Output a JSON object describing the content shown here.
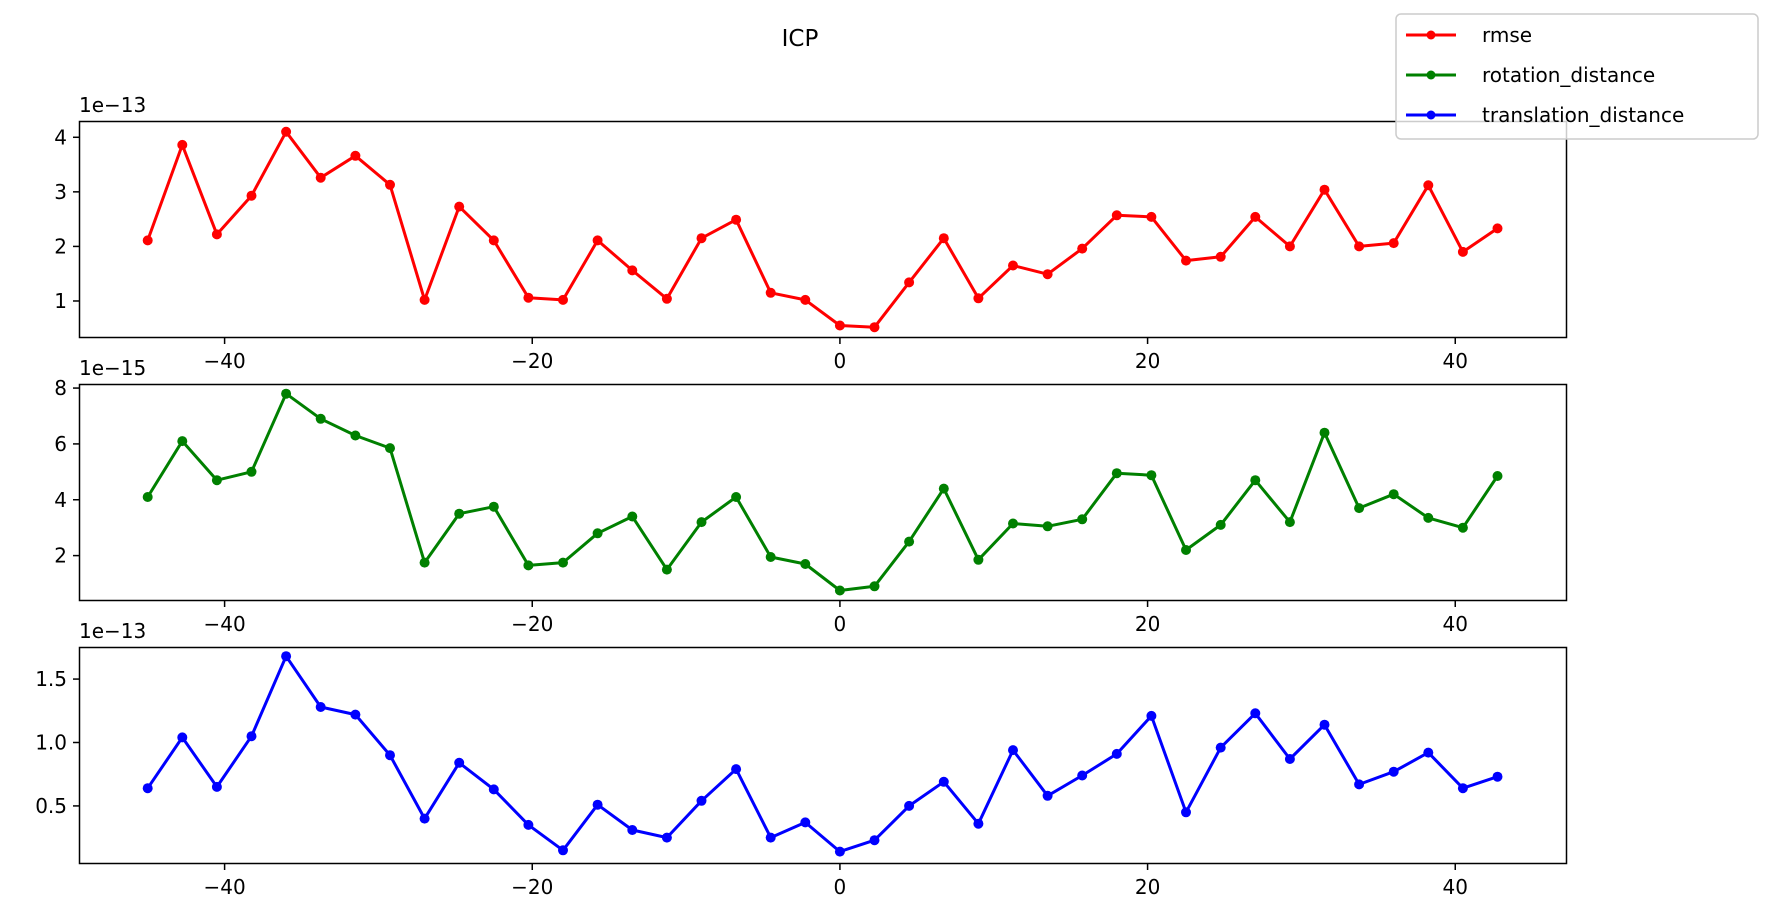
{
  "figure": {
    "title": "ICP"
  },
  "legend": {
    "placement": "top-right",
    "entries": [
      {
        "label": "rmse",
        "color": "#ff0000"
      },
      {
        "label": "rotation_distance",
        "color": "#008000"
      },
      {
        "label": "translation_distance",
        "color": "#0000ff"
      }
    ]
  },
  "chart_data": [
    {
      "type": "line",
      "title": "",
      "xlabel": "",
      "ylabel": "",
      "offset_label": "1e−13",
      "color": "#ff0000",
      "xlim": [
        -49.4,
        47.2
      ],
      "ylim": [
        0.34,
        4.28
      ],
      "xticks": [
        -40,
        -20,
        0,
        20,
        40
      ],
      "xtick_labels": [
        "−40",
        "−20",
        "0",
        "20",
        "40"
      ],
      "yticks": [
        1,
        2,
        3,
        4
      ],
      "ytick_labels": [
        "1",
        "2",
        "3",
        "4"
      ],
      "grid": false,
      "series": [
        {
          "name": "rmse",
          "x": [
            -45,
            -42.75,
            -40.5,
            -38.25,
            -36,
            -33.75,
            -31.5,
            -29.25,
            -27,
            -24.75,
            -22.5,
            -20.25,
            -18,
            -15.75,
            -13.5,
            -11.25,
            -9,
            -6.75,
            -4.5,
            -2.25,
            0,
            2.25,
            4.5,
            6.75,
            9,
            11.25,
            13.5,
            15.75,
            18,
            20.25,
            22.5,
            24.75,
            27,
            29.25,
            31.5,
            33.75,
            36,
            38.25,
            40.5,
            42.75
          ],
          "y": [
            2.11,
            3.86,
            2.22,
            2.93,
            4.1,
            3.26,
            3.66,
            3.13,
            1.02,
            2.73,
            2.11,
            1.06,
            1.02,
            2.11,
            1.56,
            1.04,
            2.15,
            2.49,
            1.15,
            1.02,
            0.55,
            0.52,
            1.34,
            2.15,
            1.05,
            1.65,
            1.49,
            1.96,
            2.57,
            2.54,
            1.74,
            1.81,
            2.54,
            2.0,
            3.04,
            2.0,
            2.06,
            3.12,
            1.9,
            2.33
          ]
        }
      ]
    },
    {
      "type": "line",
      "title": "",
      "xlabel": "",
      "ylabel": "",
      "offset_label": "1e−15",
      "color": "#008000",
      "xlim": [
        -49.4,
        47.2
      ],
      "ylim": [
        0.41,
        8.11
      ],
      "xticks": [
        -40,
        -20,
        0,
        20,
        40
      ],
      "xtick_labels": [
        "−40",
        "−20",
        "0",
        "20",
        "40"
      ],
      "yticks": [
        2,
        4,
        6,
        8
      ],
      "ytick_labels": [
        "2",
        "4",
        "6",
        "8"
      ],
      "grid": false,
      "series": [
        {
          "name": "rotation_distance",
          "x": [
            -45,
            -42.75,
            -40.5,
            -38.25,
            -36,
            -33.75,
            -31.5,
            -29.25,
            -27,
            -24.75,
            -22.5,
            -20.25,
            -18,
            -15.75,
            -13.5,
            -11.25,
            -9,
            -6.75,
            -4.5,
            -2.25,
            0,
            2.25,
            4.5,
            6.75,
            9,
            11.25,
            13.5,
            15.75,
            18,
            20.25,
            22.5,
            24.75,
            27,
            29.25,
            31.5,
            33.75,
            36,
            38.25,
            40.5,
            42.75
          ],
          "y": [
            4.1,
            6.1,
            4.7,
            5.0,
            7.8,
            6.9,
            6.3,
            5.85,
            1.75,
            3.5,
            3.75,
            1.65,
            1.75,
            2.8,
            3.4,
            1.5,
            3.2,
            4.1,
            1.95,
            1.7,
            0.75,
            0.9,
            2.5,
            4.4,
            1.85,
            3.15,
            3.05,
            3.3,
            4.95,
            4.88,
            2.2,
            3.1,
            4.7,
            3.2,
            6.4,
            3.7,
            4.2,
            3.35,
            3.0,
            4.85
          ]
        }
      ]
    },
    {
      "type": "line",
      "title": "",
      "xlabel": "",
      "ylabel": "",
      "offset_label": "1e−13",
      "color": "#0000ff",
      "xlim": [
        -49.4,
        47.2
      ],
      "ylim": [
        0.05,
        1.745
      ],
      "xticks": [
        -40,
        -20,
        0,
        20,
        40
      ],
      "xtick_labels": [
        "−40",
        "−20",
        "0",
        "20",
        "40"
      ],
      "yticks": [
        0.5,
        1.0,
        1.5
      ],
      "ytick_labels": [
        "0.5",
        "1.0",
        "1.5"
      ],
      "grid": false,
      "series": [
        {
          "name": "translation_distance",
          "x": [
            -45,
            -42.75,
            -40.5,
            -38.25,
            -36,
            -33.75,
            -31.5,
            -29.25,
            -27,
            -24.75,
            -22.5,
            -20.25,
            -18,
            -15.75,
            -13.5,
            -11.25,
            -9,
            -6.75,
            -4.5,
            -2.25,
            0,
            2.25,
            4.5,
            6.75,
            9,
            11.25,
            13.5,
            15.75,
            18,
            20.25,
            22.5,
            24.75,
            27,
            29.25,
            31.5,
            33.75,
            36,
            38.25,
            40.5,
            42.75
          ],
          "y": [
            0.64,
            1.04,
            0.65,
            1.05,
            1.68,
            1.28,
            1.22,
            0.9,
            0.4,
            0.84,
            0.63,
            0.35,
            0.15,
            0.51,
            0.31,
            0.25,
            0.54,
            0.79,
            0.25,
            0.37,
            0.14,
            0.23,
            0.5,
            0.69,
            0.36,
            0.94,
            0.58,
            0.74,
            0.91,
            1.21,
            0.45,
            0.96,
            1.23,
            0.87,
            1.14,
            0.67,
            0.77,
            0.92,
            0.64,
            0.73
          ]
        }
      ]
    }
  ]
}
